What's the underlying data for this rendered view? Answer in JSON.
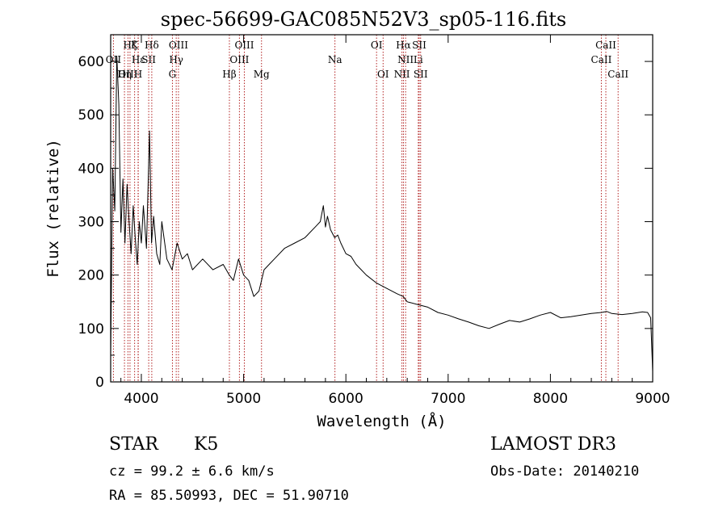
{
  "title": "spec-56699-GAC085N52V3_sp05-116.fits",
  "footer": {
    "class": "STAR",
    "subclass": "K5",
    "survey": "LAMOST DR3",
    "cz": "cz = 99.2 ± 6.6 km/s",
    "obs_date": "Obs-Date: 20140210",
    "radec": "RA =  85.50993, DEC =  51.90710"
  },
  "chart_data": {
    "type": "line",
    "title": "spec-56699-GAC085N52V3_sp05-116.fits",
    "xlabel": "Wavelength (Å)",
    "ylabel": "Flux (relative)",
    "xlim": [
      3700,
      9000
    ],
    "ylim": [
      0,
      650
    ],
    "xticks": [
      4000,
      5000,
      6000,
      7000,
      8000,
      9000
    ],
    "yticks": [
      0,
      100,
      200,
      300,
      400,
      500,
      600
    ],
    "line_color": "#000000",
    "marker_color": "#b22222",
    "series": [
      {
        "name": "flux",
        "x": [
          3700,
          3720,
          3740,
          3760,
          3780,
          3800,
          3820,
          3840,
          3860,
          3880,
          3900,
          3920,
          3940,
          3960,
          3980,
          4000,
          4020,
          4050,
          4080,
          4100,
          4120,
          4150,
          4180,
          4200,
          4250,
          4300,
          4350,
          4400,
          4450,
          4500,
          4600,
          4700,
          4800,
          4860,
          4900,
          4950,
          5000,
          5050,
          5100,
          5150,
          5200,
          5250,
          5300,
          5400,
          5500,
          5600,
          5700,
          5750,
          5780,
          5800,
          5820,
          5850,
          5890,
          5920,
          5950,
          6000,
          6050,
          6100,
          6150,
          6200,
          6300,
          6400,
          6500,
          6560,
          6600,
          6700,
          6800,
          6900,
          7000,
          7100,
          7200,
          7300,
          7400,
          7500,
          7600,
          7700,
          7800,
          7900,
          8000,
          8100,
          8200,
          8300,
          8400,
          8500,
          8550,
          8600,
          8700,
          8800,
          8900,
          8950,
          8980,
          9000
        ],
        "y": [
          50,
          400,
          320,
          610,
          520,
          280,
          380,
          260,
          370,
          300,
          240,
          330,
          270,
          220,
          300,
          260,
          330,
          250,
          470,
          260,
          310,
          240,
          220,
          300,
          230,
          210,
          260,
          230,
          240,
          210,
          230,
          210,
          220,
          200,
          190,
          230,
          200,
          190,
          160,
          170,
          210,
          220,
          230,
          250,
          260,
          270,
          290,
          300,
          330,
          290,
          310,
          285,
          270,
          275,
          260,
          240,
          235,
          220,
          210,
          200,
          185,
          175,
          165,
          160,
          150,
          145,
          140,
          130,
          125,
          118,
          112,
          105,
          100,
          108,
          115,
          112,
          118,
          125,
          130,
          120,
          122,
          125,
          128,
          130,
          132,
          128,
          126,
          128,
          131,
          130,
          120,
          20
        ]
      }
    ],
    "lines": [
      {
        "name": "Hζ",
        "x": 3889,
        "row": 0
      },
      {
        "name": "K",
        "x": 3934,
        "row": 0
      },
      {
        "name": "Hδ",
        "x": 4102,
        "row": 0
      },
      {
        "name": "OIII",
        "x": 4363,
        "row": 0
      },
      {
        "name": "OIII",
        "x": 5007,
        "row": 0
      },
      {
        "name": "OI",
        "x": 6300,
        "row": 0
      },
      {
        "name": "Hα",
        "x": 6563,
        "row": 0
      },
      {
        "name": "SII",
        "x": 6717,
        "row": 0
      },
      {
        "name": "CaII",
        "x": 8542,
        "row": 0
      },
      {
        "name": "OII",
        "x": 3727,
        "row": 1
      },
      {
        "name": "Hε",
        "x": 3970,
        "row": 1
      },
      {
        "name": "SII",
        "x": 4072,
        "row": 1
      },
      {
        "name": "Hγ",
        "x": 4341,
        "row": 1
      },
      {
        "name": "OIII",
        "x": 4959,
        "row": 1
      },
      {
        "name": "NII",
        "x": 6584,
        "row": 1
      },
      {
        "name": "Li",
        "x": 6708,
        "row": 1
      },
      {
        "name": "CaII",
        "x": 8498,
        "row": 1
      },
      {
        "name": "OIII",
        "x": 3869,
        "row": 2
      },
      {
        "name": "Hη",
        "x": 3835,
        "row": 2
      },
      {
        "name": "H",
        "x": 3968,
        "row": 2
      },
      {
        "name": "G",
        "x": 4304,
        "row": 2
      },
      {
        "name": "Hβ",
        "x": 4861,
        "row": 2
      },
      {
        "name": "Mg",
        "x": 5175,
        "row": 2
      },
      {
        "name": "Na",
        "x": 5893,
        "row": 1
      },
      {
        "name": "OI",
        "x": 6364,
        "row": 2
      },
      {
        "name": "NII",
        "x": 6548,
        "row": 2
      },
      {
        "name": "SII",
        "x": 6731,
        "row": 2
      },
      {
        "name": "CaII",
        "x": 8662,
        "row": 2
      }
    ]
  }
}
